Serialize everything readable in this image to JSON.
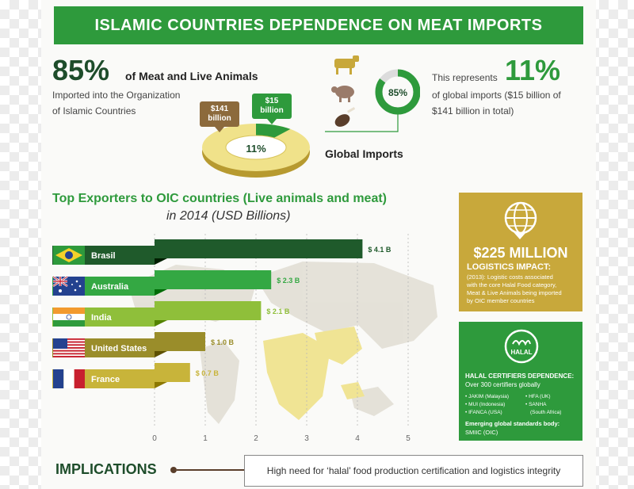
{
  "title": "ISLAMIC COUNTRIES DEPENDENCE ON MEAT IMPORTS",
  "left_stat": {
    "value": "85%",
    "label": "of Meat and Live Animals",
    "line1": "Imported into the Organization",
    "line2": "of Islamic Countries"
  },
  "right_stat": {
    "lead": "This represents",
    "value": "11%",
    "line1": "of global imports ($15 billion of",
    "line2": "$141 billion in total)"
  },
  "donut_small": {
    "label": "85%",
    "fraction": 0.85
  },
  "donut_big": {
    "label": "11%",
    "fraction": 0.11
  },
  "callout_gold": {
    "line1": "$141",
    "line2": "billion"
  },
  "callout_green": {
    "line1": "$15",
    "line2": "billion"
  },
  "global_imports_label": "Global Imports",
  "chart_title": "Top Exporters to OIC countries (Live animals and meat)",
  "chart_subtitle": "in 2014 (USD Billions)",
  "chart_data": {
    "type": "bar",
    "orientation": "horizontal",
    "title": "Top Exporters to OIC countries (Live animals and meat)",
    "subtitle": "in 2014 (USD Billions)",
    "categories": [
      "Brasil",
      "Australia",
      "India",
      "United States",
      "France"
    ],
    "values": [
      4.1,
      2.3,
      2.1,
      1.0,
      0.7
    ],
    "value_labels": [
      "$ 4.1 B",
      "$ 2.3 B",
      "$ 2.1 B",
      "$ 1.0 B",
      "$ 0.7 B"
    ],
    "bar_colors": [
      "#1f5a2b",
      "#34a843",
      "#8fbf3a",
      "#9a8d2a",
      "#c8b43a"
    ],
    "xlim": [
      0,
      5
    ],
    "xticks": [
      "0",
      "1",
      "2",
      "3",
      "4",
      "5"
    ],
    "xlabel": "",
    "ylabel": "",
    "grid": true
  },
  "logistics": {
    "amount": "$225 MILLION",
    "heading": "LOGISTICS IMPACT:",
    "body": [
      "(2013): Logistic costs associated",
      "with the core Halal Food category,",
      "Meat & Live Animals being imported",
      "by OIC member countries"
    ]
  },
  "halal": {
    "badge": "HALAL",
    "heading": "HALAL CERTIFIERS DEPENDENCE:",
    "sub": "Over 300 certifiers globally",
    "col1": [
      "• JAKIM (Malaysia)",
      "• MUI (Indonesia)",
      "• IFANCA (USA)"
    ],
    "col2": [
      "• HFA (UK)",
      "• SANHA",
      "(South Africa)"
    ],
    "emerging": "Emerging global standards body:",
    "emerging_value": "SMIIC (OIC)"
  },
  "implications": {
    "label": "IMPLICATIONS",
    "text": "High need for ‘halal’ food production certification and logistics integrity"
  },
  "colors": {
    "brand_green": "#2e9a3c",
    "dark_green": "#1e4d2b",
    "gold": "#c8a83b",
    "pale_gold": "#f0e28a"
  }
}
